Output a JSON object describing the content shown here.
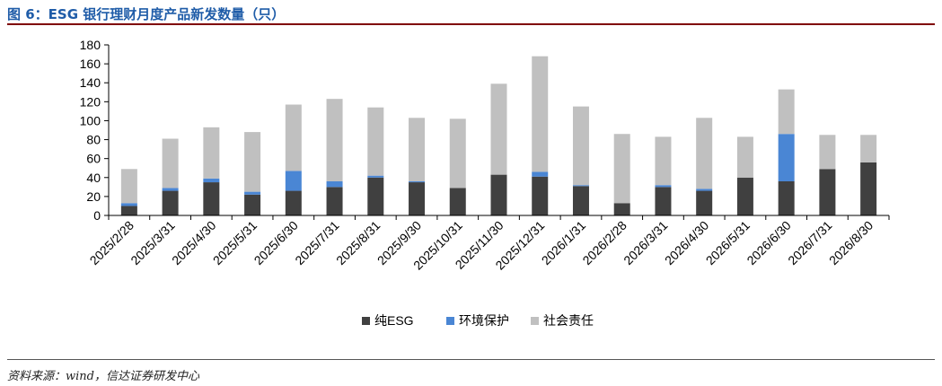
{
  "header": {
    "title": "图 6：ESG 银行理财月度产品新发数量（只）"
  },
  "footer": {
    "source": "资料来源：wind，信达证券研发中心"
  },
  "colors": {
    "title": "#1f5ca8",
    "rule": "#7f0000",
    "pure_esg": "#404040",
    "environment": "#4a86d4",
    "social": "#c0c0c0"
  },
  "chart_data": {
    "type": "bar",
    "stacked": true,
    "title": "",
    "xlabel": "",
    "ylabel": "",
    "ylim": [
      0,
      180
    ],
    "yticks": [
      0,
      20,
      40,
      60,
      80,
      100,
      120,
      140,
      160,
      180
    ],
    "grid": false,
    "legend_position": "bottom",
    "categories": [
      "2025/2/28",
      "2025/3/31",
      "2025/4/30",
      "2025/5/31",
      "2025/6/30",
      "2025/7/31",
      "2025/8/31",
      "2025/9/30",
      "2025/10/31",
      "2025/11/30",
      "2025/12/31",
      "2026/1/31",
      "2026/2/28",
      "2026/3/31",
      "2026/4/30",
      "2026/5/31",
      "2026/6/30",
      "2026/7/31",
      "2026/8/30"
    ],
    "series": [
      {
        "name": "纯ESG",
        "color": "#404040",
        "values": [
          10,
          26,
          35,
          22,
          26,
          30,
          40,
          35,
          29,
          43,
          41,
          31,
          13,
          30,
          26,
          40,
          36,
          49,
          56
        ]
      },
      {
        "name": "环境保护",
        "color": "#4a86d4",
        "values": [
          3,
          3,
          4,
          3,
          21,
          6,
          2,
          1,
          0,
          0,
          5,
          1,
          0,
          2,
          2,
          0,
          50,
          0,
          0
        ]
      },
      {
        "name": "社会责任",
        "color": "#c0c0c0",
        "values": [
          36,
          52,
          54,
          63,
          70,
          87,
          72,
          67,
          73,
          96,
          122,
          83,
          73,
          51,
          75,
          43,
          47,
          36,
          29
        ]
      }
    ]
  }
}
